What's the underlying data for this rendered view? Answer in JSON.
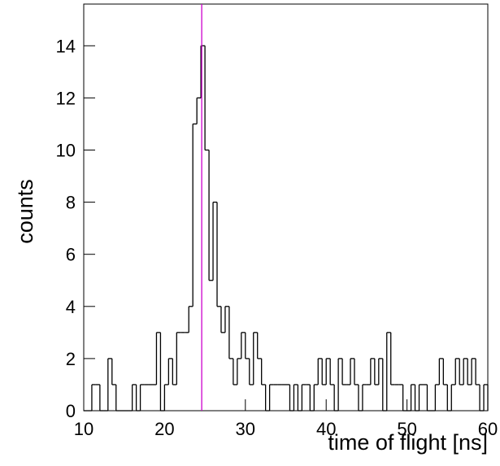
{
  "chart_data": {
    "type": "histogram",
    "x_label": "time of flight [ns]",
    "y_label": "counts",
    "bins": [
      10,
      10.5,
      11,
      11.5,
      12,
      12.5,
      13,
      13.5,
      14,
      14.5,
      15,
      15.5,
      16,
      16.5,
      17,
      17.5,
      18,
      18.5,
      19,
      19.5,
      20,
      20.5,
      21,
      21.5,
      22,
      22.5,
      23,
      23.5,
      24,
      24.5,
      25,
      25.5,
      26,
      26.5,
      27,
      27.5,
      28,
      28.5,
      29,
      29.5,
      30,
      30.5,
      31,
      31.5,
      32,
      32.5,
      33,
      33.5,
      34,
      34.5,
      35,
      35.5,
      36,
      36.5,
      37,
      37.5,
      38,
      38.5,
      39,
      39.5,
      40,
      40.5,
      41,
      41.5,
      42,
      42.5,
      43,
      43.5,
      44,
      44.5,
      45,
      45.5,
      46,
      46.5,
      47,
      47.5,
      48,
      48.5,
      49,
      49.5,
      50,
      50.5,
      51,
      51.5,
      52,
      52.5,
      53,
      53.5,
      54,
      54.5,
      55,
      55.5,
      56,
      56.5,
      57,
      57.5,
      58,
      58.5,
      59,
      59.5,
      60
    ],
    "values": [
      0,
      0,
      1,
      1,
      0,
      0,
      2,
      1,
      0,
      0,
      0,
      0,
      1,
      0,
      1,
      1,
      1,
      1,
      3,
      0,
      1,
      2,
      1,
      3,
      3,
      3,
      4,
      11,
      12,
      14,
      10,
      5,
      8,
      4,
      3,
      4,
      2,
      1,
      2,
      3,
      2,
      1,
      3,
      2,
      1,
      0,
      1,
      1,
      1,
      1,
      1,
      0,
      1,
      0,
      1,
      1,
      0,
      1,
      2,
      1,
      2,
      1,
      0,
      2,
      1,
      1,
      2,
      1,
      0,
      1,
      1,
      2,
      1,
      2,
      0,
      3,
      1,
      1,
      1,
      0,
      0,
      1,
      0,
      1,
      1,
      0,
      0,
      1,
      2,
      1,
      0,
      1,
      2,
      1,
      2,
      1,
      2,
      1,
      0,
      1
    ],
    "color": "#000000",
    "marker_x": 24.6,
    "marker_color": "#cc00cc",
    "xlim": [
      10,
      60
    ],
    "xticks": [
      10,
      20,
      30,
      40,
      50,
      60
    ],
    "ylim": [
      0,
      15.6
    ],
    "yticks": [
      0,
      2,
      4,
      6,
      8,
      10,
      12,
      14
    ]
  }
}
